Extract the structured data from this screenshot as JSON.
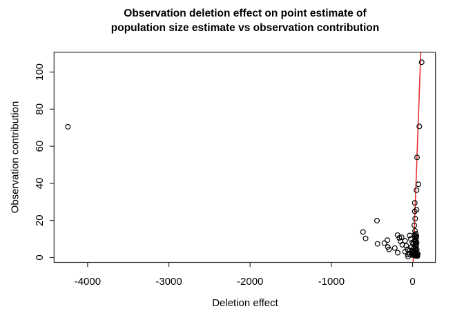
{
  "figure": {
    "title_line1": "Observation deletion effect on point estimate of",
    "title_line2": "population size estimate vs observation contribution",
    "xlabel": "Deletion effect",
    "ylabel": "Observation contribution"
  },
  "chart_data": {
    "type": "scatter",
    "title": "Observation deletion effect on point estimate of population size estimate vs observation contribution",
    "xlabel": "Deletion effect",
    "ylabel": "Observation contribution",
    "xlim": [
      -4413,
      282
    ],
    "ylim": [
      -2.6,
      110.7
    ],
    "xticks": [
      -4000,
      -3000,
      -2000,
      -1000,
      0
    ],
    "yticks": [
      0,
      20,
      40,
      60,
      80,
      100
    ],
    "grid": false,
    "legend": null,
    "point_style": {
      "shape": "open-circle",
      "stroke": "#000000",
      "radius": 3.4,
      "stroke_width": 1.2
    },
    "axis_color": "#2b2b2b",
    "background": "#ffffff",
    "fit_line": {
      "x1": 7,
      "y1": -2.6,
      "x2": 101,
      "y2": 110.7,
      "color": "#e83030",
      "width": 1.6
    },
    "points": [
      [
        -4243,
        70.5
      ],
      [
        112,
        105.3
      ],
      [
        83,
        70.7
      ],
      [
        55,
        54
      ],
      [
        72,
        39.5
      ],
      [
        49,
        36.3
      ],
      [
        27,
        29.5
      ],
      [
        49,
        25.8
      ],
      [
        27,
        24.9
      ],
      [
        32,
        21
      ],
      [
        21,
        17.4
      ],
      [
        30,
        14.4
      ],
      [
        -610,
        13.8
      ],
      [
        -578,
        10.3
      ],
      [
        -438,
        19.9
      ],
      [
        -432,
        7.4
      ],
      [
        -347,
        7.8
      ],
      [
        -310,
        9.4
      ],
      [
        -304,
        5.7
      ],
      [
        -290,
        4.4
      ],
      [
        -219,
        5.1
      ],
      [
        -185,
        12.1
      ],
      [
        -183,
        2.6
      ],
      [
        -163,
        10.6
      ],
      [
        -149,
        8.8
      ],
      [
        -134,
        10.9
      ],
      [
        -126,
        6.9
      ],
      [
        -92,
        9.0
      ],
      [
        -92,
        3.2
      ],
      [
        -78,
        6.3
      ],
      [
        -64,
        4.4
      ],
      [
        -58,
        1.6
      ],
      [
        -55,
        0.5
      ],
      [
        -36,
        11.9
      ],
      [
        -36,
        2.0
      ],
      [
        -21,
        10.0
      ],
      [
        -13,
        5.7
      ],
      [
        -36,
        3.8
      ],
      [
        -2,
        8.1
      ],
      [
        40,
        12.8
      ],
      [
        34,
        11.8
      ],
      [
        44,
        10.8
      ],
      [
        38,
        9.8
      ],
      [
        42,
        8.8
      ],
      [
        35,
        7.8
      ],
      [
        45,
        6.8
      ],
      [
        39,
        5.8
      ],
      [
        33,
        4.8
      ],
      [
        43,
        3.8
      ],
      [
        37,
        2.8
      ],
      [
        41,
        1.8
      ],
      [
        34,
        1.0
      ],
      [
        47,
        0.9
      ],
      [
        28,
        2.2
      ],
      [
        25,
        1.1
      ],
      [
        52,
        4.5
      ],
      [
        55,
        2.5
      ],
      [
        50,
        8.0
      ],
      [
        48,
        11.5
      ],
      [
        20,
        3.0
      ],
      [
        58,
        1.3
      ],
      [
        30,
        6.5
      ],
      [
        26,
        9.2
      ],
      [
        22,
        12.2
      ],
      [
        12,
        1.6
      ],
      [
        8,
        2.6
      ],
      [
        2,
        1.9
      ],
      [
        -5,
        1.4
      ],
      [
        -12,
        2.9
      ],
      [
        16,
        5.2
      ],
      [
        10,
        7.4
      ],
      [
        5,
        3.9
      ],
      [
        60,
        0.8
      ],
      [
        64,
        2.0
      ]
    ]
  }
}
